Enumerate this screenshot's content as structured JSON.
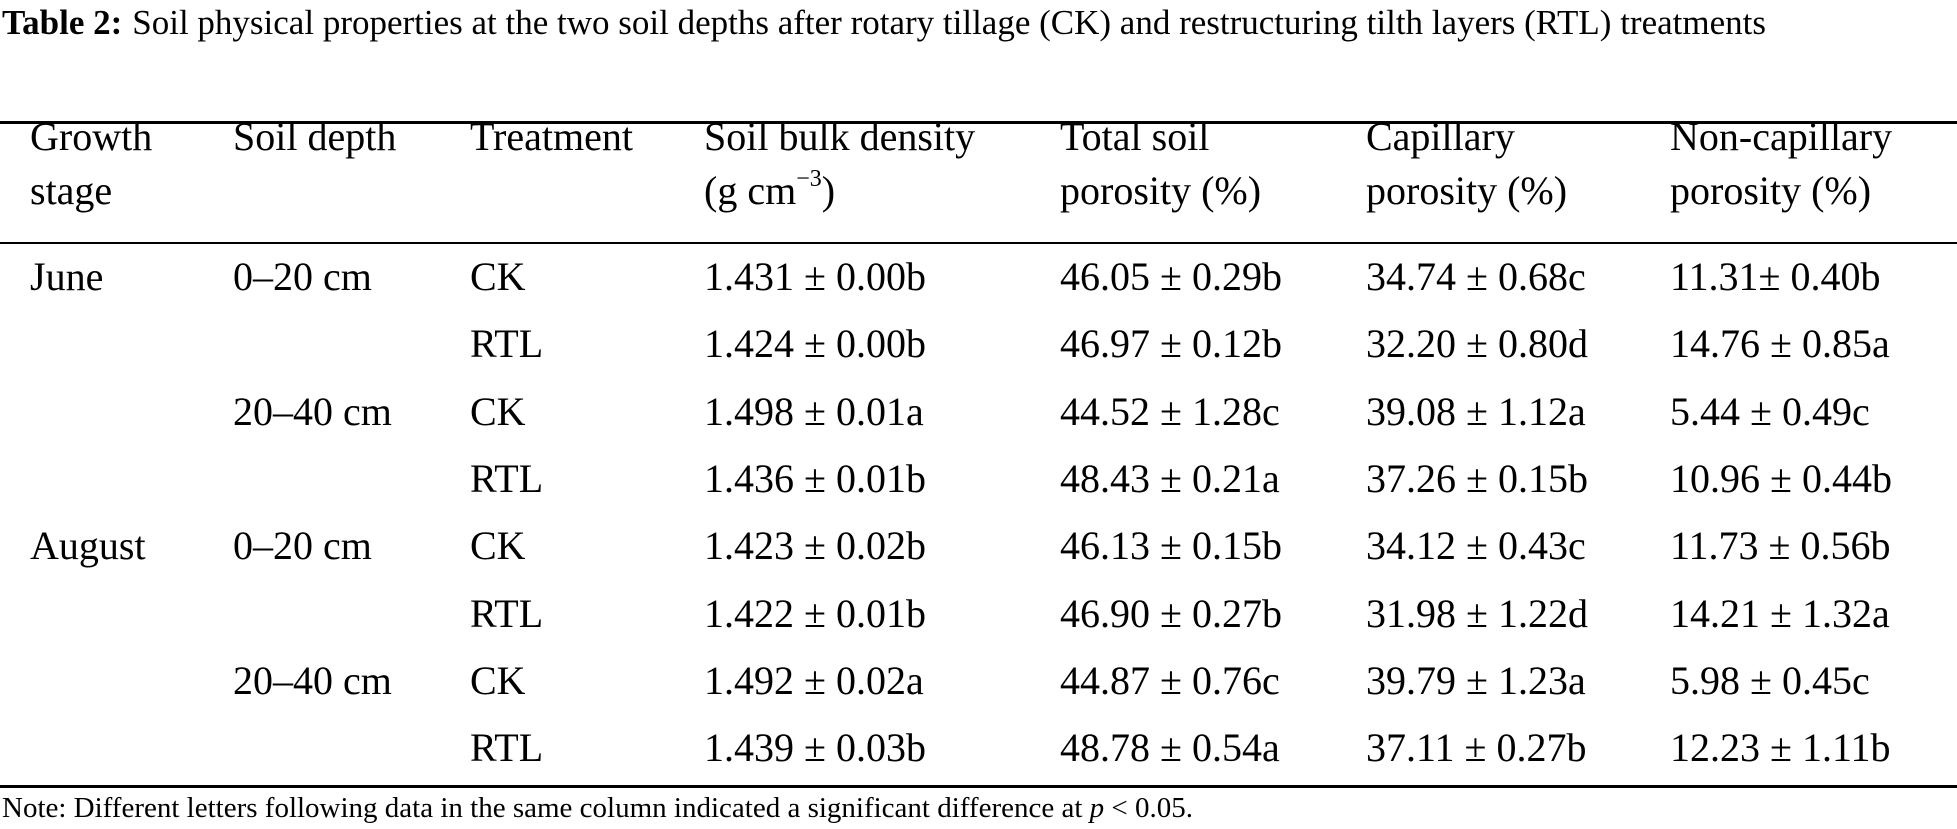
{
  "caption": {
    "label": "Table 2:",
    "text": "Soil physical properties at the two soil depths after rotary tillage (CK) and restructuring tilth layers (RTL) treatments"
  },
  "headers": {
    "growth_stage": [
      "Growth",
      "stage"
    ],
    "soil_depth": "Soil depth",
    "treatment": "Treatment",
    "bulk_density": [
      "Soil bulk density",
      "(g cm",
      "−3",
      ")"
    ],
    "total_porosity": [
      "Total soil",
      "porosity (%)"
    ],
    "capillary_porosity": [
      "Capillary",
      "porosity (%)"
    ],
    "noncapillary_porosity": [
      "Non-capillary",
      "porosity (%)"
    ]
  },
  "rows": [
    {
      "stage": "June",
      "depth": "0–20 cm",
      "treatment": "CK",
      "bulk": "1.431 ± 0.00b",
      "total": "46.05 ± 0.29b",
      "cap": "34.74 ± 0.68c",
      "noncap": "11.31± 0.40b"
    },
    {
      "stage": "",
      "depth": "",
      "treatment": "RTL",
      "bulk": "1.424 ± 0.00b",
      "total": "46.97 ± 0.12b",
      "cap": "32.20 ± 0.80d",
      "noncap": "14.76 ± 0.85a"
    },
    {
      "stage": "",
      "depth": "20–40 cm",
      "treatment": "CK",
      "bulk": "1.498 ± 0.01a",
      "total": "44.52 ± 1.28c",
      "cap": "39.08 ± 1.12a",
      "noncap": "5.44 ± 0.49c"
    },
    {
      "stage": "",
      "depth": "",
      "treatment": "RTL",
      "bulk": "1.436 ± 0.01b",
      "total": "48.43 ± 0.21a",
      "cap": "37.26 ± 0.15b",
      "noncap": "10.96 ± 0.44b"
    },
    {
      "stage": "August",
      "depth": "0–20 cm",
      "treatment": "CK",
      "bulk": "1.423 ± 0.02b",
      "total": "46.13 ± 0.15b",
      "cap": "34.12 ± 0.43c",
      "noncap": "11.73 ± 0.56b"
    },
    {
      "stage": "",
      "depth": "",
      "treatment": "RTL",
      "bulk": "1.422 ± 0.01b",
      "total": "46.90 ± 0.27b",
      "cap": "31.98 ± 1.22d",
      "noncap": "14.21 ± 1.32a"
    },
    {
      "stage": "",
      "depth": "20–40 cm",
      "treatment": "CK",
      "bulk": "1.492 ± 0.02a",
      "total": "44.87 ± 0.76c",
      "cap": "39.79 ± 1.23a",
      "noncap": "5.98 ± 0.45c"
    },
    {
      "stage": "",
      "depth": "",
      "treatment": "RTL",
      "bulk": "1.439 ± 0.03b",
      "total": "48.78 ± 0.54a",
      "cap": "37.11 ± 0.27b",
      "noncap": "12.23 ± 1.11b"
    }
  ],
  "note": {
    "prefix": "Note: Different letters following data in the same column indicated a significant difference at ",
    "variable": "p",
    "suffix": " < 0.05."
  }
}
